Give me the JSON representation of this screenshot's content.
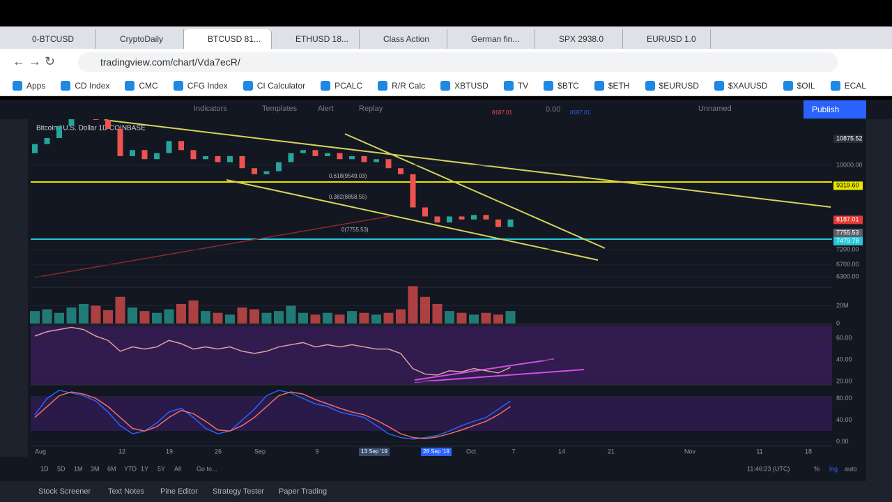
{
  "browser": {
    "tabs": [
      "0-BTCUSD",
      "CryptoDaily",
      "BTCUSD 81...",
      "ETHUSD 18...",
      "Class Action",
      "German fin...",
      "SPX 2938.0",
      "EURUSD 1.0"
    ],
    "url": "tradingview.com/chart/Vda7ecR/",
    "bookmarks": [
      "Apps",
      "CD Index",
      "CMC",
      "CFG Index",
      "CI Calculator",
      "PCALC",
      "R/R Calc",
      "XBTUSD",
      "TV",
      "$BTC",
      "$ETH",
      "$EURUSD",
      "$XAUUSD",
      "$OIL",
      "ECAL"
    ]
  },
  "toolbar": {
    "buttons": [
      "Indicators",
      "Templates",
      "Alert",
      "Replay"
    ],
    "sell": "8187.01",
    "spread": "0.00",
    "buy": "8187.01",
    "layout": "Unnamed",
    "publish": "Publish"
  },
  "chart_data": {
    "type": "candlestick",
    "title": "Bitcoin / U.S. Dollar  1D  COINBASE",
    "open": [
      10400,
      10700,
      10900,
      11300,
      11600,
      11800,
      11500,
      11200,
      10300,
      10500,
      10200,
      10400,
      10800,
      10500,
      10200,
      10300,
      10100,
      10300,
      9900,
      9700,
      9800,
      10100,
      10400,
      10500,
      10300,
      10400,
      10200,
      10300,
      10100,
      10200,
      9900,
      9700,
      8600,
      8300,
      8100,
      8300,
      8200,
      8350,
      8200,
      7950
    ],
    "close": [
      10700,
      10900,
      11300,
      11600,
      11800,
      11500,
      11200,
      10300,
      10500,
      10200,
      10400,
      10800,
      10500,
      10200,
      10300,
      10100,
      10300,
      9900,
      9700,
      9800,
      10100,
      10400,
      10500,
      10300,
      10400,
      10200,
      10300,
      10100,
      10200,
      9900,
      9700,
      8600,
      8300,
      8100,
      8300,
      8200,
      8350,
      8200,
      7950,
      8200
    ],
    "ylim": [
      6000,
      11500
    ],
    "yticks": [
      {
        "value": 10000,
        "label": "10000.00"
      },
      {
        "value": 7200,
        "label": "7200.00"
      },
      {
        "value": 6700,
        "label": "6700.00"
      },
      {
        "value": 6300,
        "label": "6300.00"
      }
    ],
    "price_labels": [
      {
        "value": 10875.52,
        "label": "10875.52",
        "color": "#2a2e39"
      },
      {
        "value": 9319.6,
        "label": "9319.60",
        "color": "#e6e600"
      },
      {
        "value": 8187.01,
        "label": "8187.01",
        "color": "#e53935"
      },
      {
        "value": 7755.53,
        "label": "7755.53",
        "color": "#5d606b"
      },
      {
        "value": 7479.78,
        "label": "7479.78",
        "color": "#26c6da"
      }
    ],
    "fib_labels": [
      "0.618(9549.03)",
      "0.382(8858.55)",
      "0(7755.53)"
    ],
    "volume": {
      "values": [
        14,
        16,
        12,
        18,
        22,
        20,
        15,
        30,
        18,
        14,
        12,
        16,
        22,
        26,
        14,
        12,
        10,
        18,
        16,
        12,
        14,
        20,
        12,
        10,
        12,
        10,
        14,
        12,
        10,
        12,
        16,
        42,
        30,
        22,
        14,
        12,
        10,
        12,
        10,
        14
      ],
      "ylim": [
        0,
        40
      ],
      "yticks": [
        {
          "value": 20,
          "label": "20M"
        },
        0
      ]
    },
    "rsi": {
      "values": [
        62,
        66,
        68,
        70,
        68,
        62,
        58,
        48,
        52,
        50,
        52,
        58,
        55,
        50,
        52,
        50,
        52,
        48,
        46,
        48,
        52,
        54,
        56,
        52,
        54,
        52,
        54,
        52,
        50,
        50,
        46,
        32,
        27,
        26,
        30,
        29,
        32,
        30,
        28,
        33
      ],
      "ylim": [
        17,
        71
      ],
      "yticks": [
        {
          "value": 60,
          "label": "60.00"
        },
        {
          "value": 40,
          "label": "40.00"
        },
        {
          "value": 20,
          "label": "20.00"
        }
      ]
    },
    "stoch": {
      "k": [
        50,
        80,
        95,
        90,
        85,
        75,
        55,
        30,
        15,
        20,
        35,
        55,
        62,
        45,
        25,
        15,
        20,
        40,
        60,
        85,
        95,
        90,
        80,
        70,
        65,
        55,
        50,
        45,
        30,
        15,
        8,
        5,
        8,
        12,
        20,
        30,
        38,
        45,
        60,
        75
      ],
      "d": [
        45,
        65,
        85,
        92,
        88,
        80,
        65,
        45,
        25,
        20,
        28,
        45,
        58,
        52,
        38,
        22,
        20,
        30,
        45,
        65,
        85,
        92,
        88,
        78,
        70,
        62,
        55,
        50,
        40,
        28,
        15,
        8,
        6,
        9,
        15,
        22,
        30,
        38,
        50,
        65
      ],
      "ylim": [
        -8,
        105
      ],
      "yticks": [
        {
          "value": 80,
          "label": "80.00"
        },
        {
          "value": 40,
          "label": "40.00"
        },
        {
          "value": 0,
          "label": "0.00"
        }
      ]
    },
    "x_labels": [
      "Aug",
      "12",
      "19",
      "26",
      "Sep",
      "9",
      "Oct",
      "7",
      "14",
      "21",
      "Nov",
      "11",
      "18"
    ],
    "crosshair_dates": [
      "13 Sep '19",
      "28 Sep '19"
    ],
    "colors": {
      "up": "#26a69a",
      "down": "#ef5350",
      "rsi": "#e0a0a0",
      "k": "#2962ff",
      "d": "#ef6c6c"
    }
  },
  "bottom": {
    "timeframes": [
      "1D",
      "5D",
      "1M",
      "3M",
      "6M",
      "YTD",
      "1Y",
      "5Y",
      "All"
    ],
    "goto": "Go to...",
    "clock": "11:46:23 (UTC)",
    "scale": [
      "%",
      "log",
      "auto"
    ],
    "tabs": [
      "Stock Screener",
      "Text Notes",
      "Pine Editor",
      "Strategy Tester",
      "Paper Trading"
    ]
  }
}
